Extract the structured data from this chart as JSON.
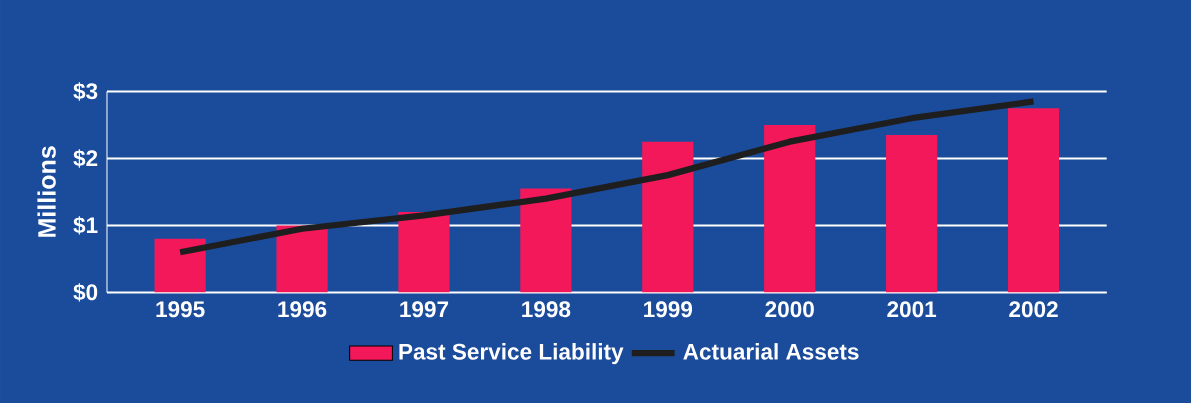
{
  "chart_data": {
    "type": "bar",
    "ylabel": "Millions",
    "categories": [
      "1995",
      "1996",
      "1997",
      "1998",
      "1999",
      "2000",
      "2001",
      "2002"
    ],
    "series": [
      {
        "name": "Past Service Liability",
        "color": "#f2185a",
        "values": [
          0.8,
          1.0,
          1.2,
          1.55,
          2.25,
          2.5,
          2.35,
          2.75
        ]
      },
      {
        "name": "Actuarial Assets",
        "type": "line",
        "color": "#1e1e1e",
        "values": [
          0.6,
          0.95,
          1.15,
          1.4,
          1.75,
          2.25,
          2.6,
          2.85
        ]
      }
    ],
    "ylim": [
      0,
      3
    ],
    "yticks": [
      {
        "value": 0,
        "label": "$0"
      },
      {
        "value": 1,
        "label": "$1"
      },
      {
        "value": 2,
        "label": "$2"
      },
      {
        "value": 3,
        "label": "$3"
      }
    ],
    "grid": "y",
    "legend": "bottom",
    "marker": "none"
  }
}
